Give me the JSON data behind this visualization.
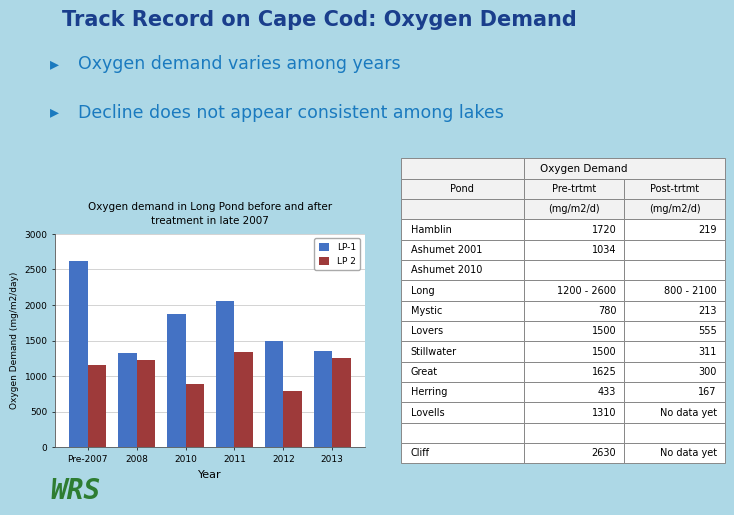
{
  "bg_color": "#add8e6",
  "title": "Track Record on Cape Cod: Oxygen Demand",
  "title_color": "#1a3e8c",
  "bullets": [
    "Oxygen demand varies among years",
    "Decline does not appear consistent among lakes"
  ],
  "bullet_color": "#1a7abf",
  "chart_title_line1": "Oxygen demand in Long Pond before and after",
  "chart_title_line2": "treatment in late 2007",
  "years": [
    "Pre-2007",
    "2008",
    "2010",
    "2011",
    "2012",
    "2013"
  ],
  "lp1_values": [
    2620,
    1330,
    1880,
    2060,
    1500,
    1360
  ],
  "lp2_values": [
    1150,
    1230,
    890,
    1340,
    790,
    1260
  ],
  "lp1_color": "#4472c4",
  "lp2_color": "#9e3a3a",
  "ylabel": "Oxygen Demand (mg/m2/day)",
  "xlabel": "Year",
  "ylim": [
    0,
    3000
  ],
  "yticks": [
    0,
    500,
    1000,
    1500,
    2000,
    2500,
    3000
  ],
  "legend_labels": [
    "LP-1",
    "LP 2"
  ],
  "table_rows": [
    [
      "Hamblin",
      "1720",
      "219"
    ],
    [
      "Ashumet 2001",
      "1034",
      ""
    ],
    [
      "Ashumet 2010",
      "",
      ""
    ],
    [
      "Long",
      "1200 - 2600",
      "800 - 2100"
    ],
    [
      "Mystic",
      "780",
      "213"
    ],
    [
      "Lovers",
      "1500",
      "555"
    ],
    [
      "Stillwater",
      "1500",
      "311"
    ],
    [
      "Great",
      "1625",
      "300"
    ],
    [
      "Herring",
      "433",
      "167"
    ],
    [
      "Lovells",
      "1310",
      "No data yet"
    ],
    [
      "",
      "",
      ""
    ],
    [
      "Cliff",
      "2630",
      "No data yet"
    ]
  ],
  "wrs_color": "#2e7d32",
  "chart_bg": "#ffffff",
  "table_edge_color": "#888888",
  "table_header_bg": "#f2f2f2"
}
